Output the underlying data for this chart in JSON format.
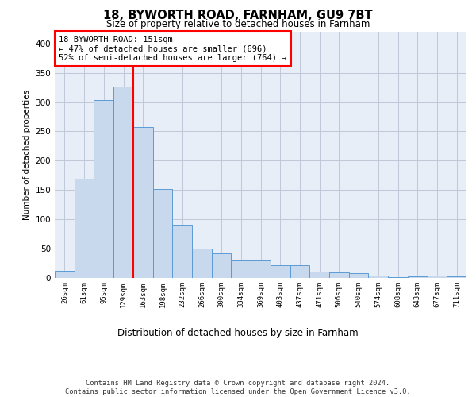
{
  "title1": "18, BYWORTH ROAD, FARNHAM, GU9 7BT",
  "title2": "Size of property relative to detached houses in Farnham",
  "xlabel": "Distribution of detached houses by size in Farnham",
  "ylabel": "Number of detached properties",
  "categories": [
    "26sqm",
    "61sqm",
    "95sqm",
    "129sqm",
    "163sqm",
    "198sqm",
    "232sqm",
    "266sqm",
    "300sqm",
    "334sqm",
    "369sqm",
    "403sqm",
    "437sqm",
    "471sqm",
    "506sqm",
    "540sqm",
    "574sqm",
    "608sqm",
    "643sqm",
    "677sqm",
    "711sqm"
  ],
  "values": [
    12,
    170,
    303,
    327,
    258,
    152,
    90,
    50,
    42,
    30,
    30,
    22,
    22,
    11,
    10,
    8,
    4,
    2,
    3,
    4,
    3
  ],
  "bar_color": "#c8d9ed",
  "bar_edge_color": "#5b9bd5",
  "grid_color": "#c0c8d8",
  "background_color": "#e8eef7",
  "vline_x": 3.5,
  "vline_color": "red",
  "annotation_text": "18 BYWORTH ROAD: 151sqm\n← 47% of detached houses are smaller (696)\n52% of semi-detached houses are larger (764) →",
  "annotation_box_color": "white",
  "annotation_box_edge": "red",
  "ylim": [
    0,
    420
  ],
  "yticks": [
    0,
    50,
    100,
    150,
    200,
    250,
    300,
    350,
    400
  ],
  "footer": "Contains HM Land Registry data © Crown copyright and database right 2024.\nContains public sector information licensed under the Open Government Licence v3.0."
}
